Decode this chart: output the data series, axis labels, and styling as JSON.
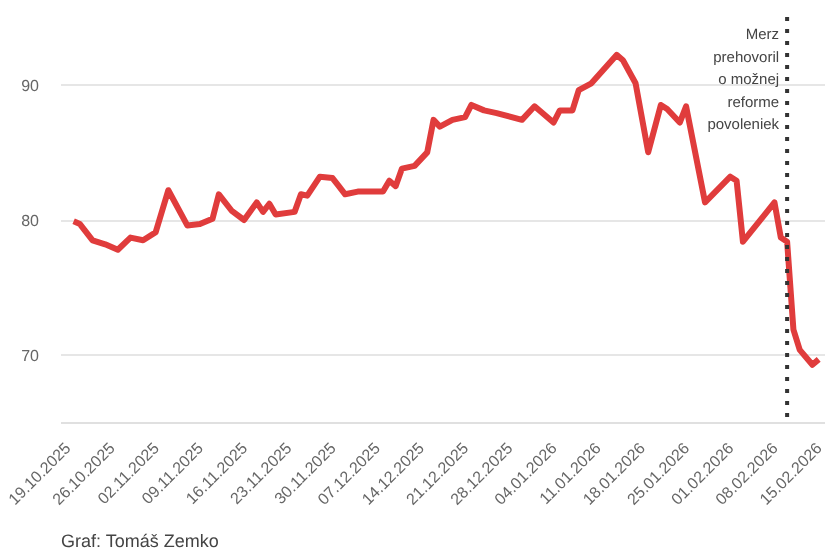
{
  "chart_data": {
    "type": "line",
    "x": [
      "2025-10-20",
      "2025-10-21",
      "2025-10-23",
      "2025-10-25",
      "2025-10-27",
      "2025-10-29",
      "2025-10-31",
      "2025-11-02",
      "2025-11-04",
      "2025-11-07",
      "2025-11-09",
      "2025-11-11",
      "2025-11-12",
      "2025-11-14",
      "2025-11-16",
      "2025-11-18",
      "2025-11-19",
      "2025-11-20",
      "2025-11-21",
      "2025-11-24",
      "2025-11-25",
      "2025-11-26",
      "2025-11-28",
      "2025-11-30",
      "2025-12-01",
      "2025-12-02",
      "2025-12-04",
      "2025-12-08",
      "2025-12-09",
      "2025-12-10",
      "2025-12-11",
      "2025-12-13",
      "2025-12-15",
      "2025-12-16",
      "2025-12-17",
      "2025-12-19",
      "2025-12-21",
      "2025-12-22",
      "2025-12-24",
      "2025-12-26",
      "2025-12-30",
      "2026-01-01",
      "2026-01-04",
      "2026-01-05",
      "2026-01-07",
      "2026-01-08",
      "2026-01-10",
      "2026-01-14",
      "2026-01-15",
      "2026-01-17",
      "2026-01-19",
      "2026-01-21",
      "2026-01-22",
      "2026-01-24",
      "2026-01-25",
      "2026-01-28",
      "2026-02-01",
      "2026-02-02",
      "2026-02-03",
      "2026-02-08",
      "2026-02-09",
      "2026-02-10",
      "2026-02-11",
      "2026-02-12",
      "2026-02-14",
      "2026-02-15"
    ],
    "series": [
      {
        "color": "#e03c3c",
        "values": [
          79.9,
          79.7,
          78.5,
          78.2,
          77.8,
          78.7,
          78.5,
          79.1,
          82.2,
          79.6,
          79.7,
          80.1,
          81.9,
          80.7,
          80.0,
          81.3,
          80.6,
          81.2,
          80.4,
          80.6,
          81.9,
          81.8,
          83.2,
          83.1,
          82.5,
          81.9,
          82.1,
          82.1,
          82.9,
          82.5,
          83.8,
          84.0,
          85.0,
          87.4,
          86.9,
          87.4,
          87.6,
          88.5,
          88.1,
          87.9,
          87.4,
          88.4,
          87.2,
          88.1,
          88.1,
          89.6,
          90.1,
          92.2,
          91.8,
          90.1,
          85.0,
          88.5,
          88.2,
          87.2,
          88.4,
          81.3,
          83.2,
          82.9,
          78.4,
          81.3,
          78.7,
          78.4,
          71.9,
          70.4,
          69.3,
          69.7
        ]
      }
    ],
    "xlim": [
      "2025-10-18",
      "2026-02-16"
    ],
    "xticks": [
      {
        "value": "2025-10-19",
        "label": "19.10.2025"
      },
      {
        "value": "2025-10-26",
        "label": "26.10.2025"
      },
      {
        "value": "2025-11-02",
        "label": "02.11.2025"
      },
      {
        "value": "2025-11-09",
        "label": "09.11.2025"
      },
      {
        "value": "2025-11-16",
        "label": "16.11.2025"
      },
      {
        "value": "2025-11-23",
        "label": "23.11.2025"
      },
      {
        "value": "2025-11-30",
        "label": "30.11.2025"
      },
      {
        "value": "2025-12-07",
        "label": "07.12.2025"
      },
      {
        "value": "2025-12-14",
        "label": "14.12.2025"
      },
      {
        "value": "2025-12-21",
        "label": "21.12.2025"
      },
      {
        "value": "2025-12-28",
        "label": "28.12.2025"
      },
      {
        "value": "2026-01-04",
        "label": "04.01.2026"
      },
      {
        "value": "2026-01-11",
        "label": "11.01.2026"
      },
      {
        "value": "2026-01-18",
        "label": "18.01.2026"
      },
      {
        "value": "2026-01-25",
        "label": "25.01.2026"
      },
      {
        "value": "2026-02-01",
        "label": "01.02.2026"
      },
      {
        "value": "2026-02-08",
        "label": "08.02.2026"
      },
      {
        "value": "2026-02-15",
        "label": "15.02.2026"
      }
    ],
    "ylim": [
      65,
      95
    ],
    "yticks": [
      70,
      80,
      90
    ],
    "grid": "y",
    "marker": "none",
    "line_style": "solid",
    "ref_lines": [
      {
        "axis": "x",
        "value": "2026-02-10",
        "label": "Merz\nprehovoril\no možnej\nreforme\npovoleniek",
        "color": "#333333",
        "line_style": "dotted"
      }
    ],
    "annotations": [
      "Graf: Tomáš Zemko"
    ]
  }
}
